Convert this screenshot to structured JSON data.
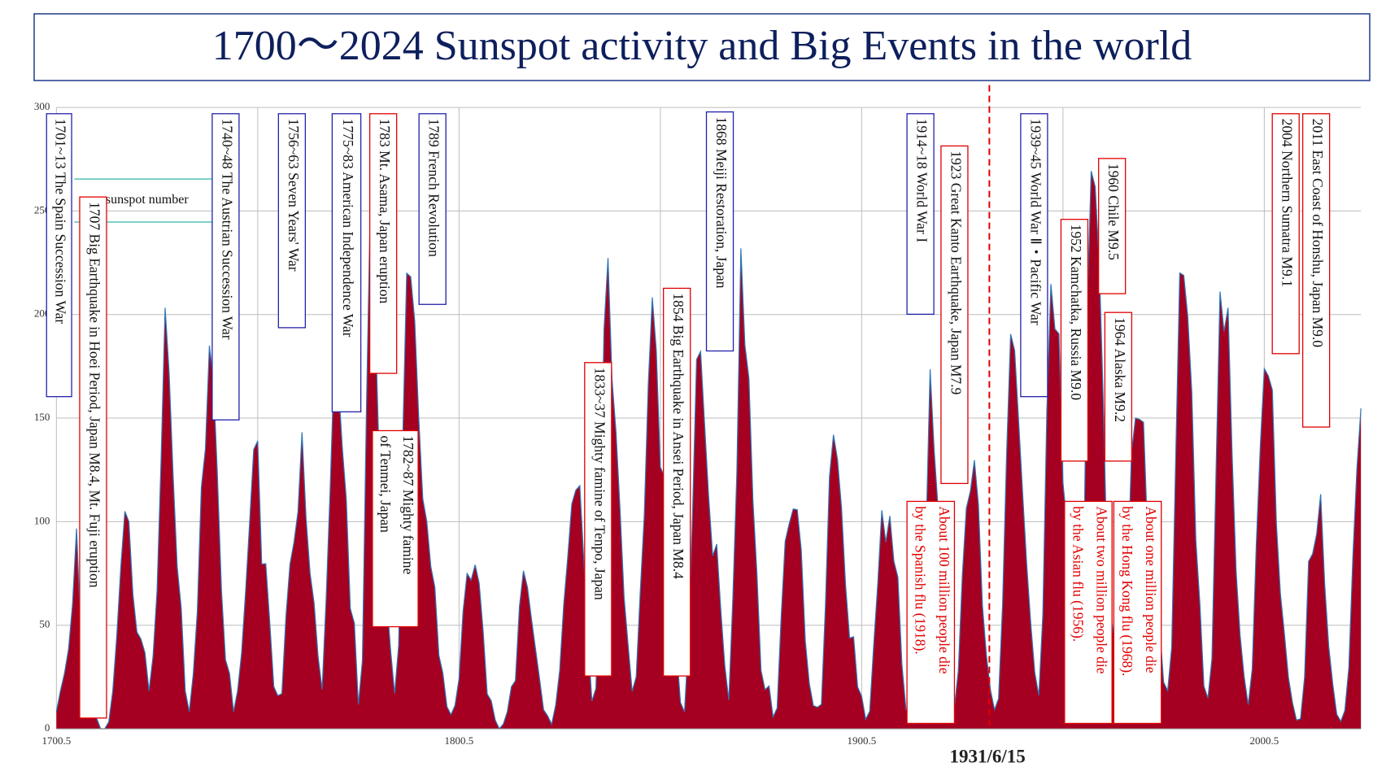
{
  "chart_data": {
    "type": "area",
    "title": "1700～2024 Sunspot activity and Big Events in the world",
    "x": [
      1700.5,
      1701.5,
      1702.5,
      1703.5,
      1704.5,
      1705.5,
      1706.5,
      1707.5,
      1708.5,
      1709.5,
      1710.5,
      1711.5,
      1712.5,
      1713.5,
      1714.5,
      1715.5,
      1716.5,
      1717.5,
      1718.5,
      1719.5,
      1720.5,
      1721.5,
      1722.5,
      1723.5,
      1724.5,
      1725.5,
      1726.5,
      1727.5,
      1728.5,
      1729.5,
      1730.5,
      1731.5,
      1732.5,
      1733.5,
      1734.5,
      1735.5,
      1736.5,
      1737.5,
      1738.5,
      1739.5,
      1740.5,
      1741.5,
      1742.5,
      1743.5,
      1744.5,
      1745.5,
      1746.5,
      1747.5,
      1748.5,
      1749.5,
      1750.5,
      1751.5,
      1752.5,
      1753.5,
      1754.5,
      1755.5,
      1756.5,
      1757.5,
      1758.5,
      1759.5,
      1760.5,
      1761.5,
      1762.5,
      1763.5,
      1764.5,
      1765.5,
      1766.5,
      1767.5,
      1768.5,
      1769.5,
      1770.5,
      1771.5,
      1772.5,
      1773.5,
      1774.5,
      1775.5,
      1776.5,
      1777.5,
      1778.5,
      1779.5,
      1780.5,
      1781.5,
      1782.5,
      1783.5,
      1784.5,
      1785.5,
      1786.5,
      1787.5,
      1788.5,
      1789.5,
      1790.5,
      1791.5,
      1792.5,
      1793.5,
      1794.5,
      1795.5,
      1796.5,
      1797.5,
      1798.5,
      1799.5,
      1800.5,
      1801.5,
      1802.5,
      1803.5,
      1804.5,
      1805.5,
      1806.5,
      1807.5,
      1808.5,
      1809.5,
      1810.5,
      1811.5,
      1812.5,
      1813.5,
      1814.5,
      1815.5,
      1816.5,
      1817.5,
      1818.5,
      1819.5,
      1820.5,
      1821.5,
      1822.5,
      1823.5,
      1824.5,
      1825.5,
      1826.5,
      1827.5,
      1828.5,
      1829.5,
      1830.5,
      1831.5,
      1832.5,
      1833.5,
      1834.5,
      1835.5,
      1836.5,
      1837.5,
      1838.5,
      1839.5,
      1840.5,
      1841.5,
      1842.5,
      1843.5,
      1844.5,
      1845.5,
      1846.5,
      1847.5,
      1848.5,
      1849.5,
      1850.5,
      1851.5,
      1852.5,
      1853.5,
      1854.5,
      1855.5,
      1856.5,
      1857.5,
      1858.5,
      1859.5,
      1860.5,
      1861.5,
      1862.5,
      1863.5,
      1864.5,
      1865.5,
      1866.5,
      1867.5,
      1868.5,
      1869.5,
      1870.5,
      1871.5,
      1872.5,
      1873.5,
      1874.5,
      1875.5,
      1876.5,
      1877.5,
      1878.5,
      1879.5,
      1880.5,
      1881.5,
      1882.5,
      1883.5,
      1884.5,
      1885.5,
      1886.5,
      1887.5,
      1888.5,
      1889.5,
      1890.5,
      1891.5,
      1892.5,
      1893.5,
      1894.5,
      1895.5,
      1896.5,
      1897.5,
      1898.5,
      1899.5,
      1900.5,
      1901.5,
      1902.5,
      1903.5,
      1904.5,
      1905.5,
      1906.5,
      1907.5,
      1908.5,
      1909.5,
      1910.5,
      1911.5,
      1912.5,
      1913.5,
      1914.5,
      1915.5,
      1916.5,
      1917.5,
      1918.5,
      1919.5,
      1920.5,
      1921.5,
      1922.5,
      1923.5,
      1924.5,
      1925.5,
      1926.5,
      1927.5,
      1928.5,
      1929.5,
      1930.5,
      1931.5,
      1932.5,
      1933.5,
      1934.5,
      1935.5,
      1936.5,
      1937.5,
      1938.5,
      1939.5,
      1940.5,
      1941.5,
      1942.5,
      1943.5,
      1944.5,
      1945.5,
      1946.5,
      1947.5,
      1948.5,
      1949.5,
      1950.5,
      1951.5,
      1952.5,
      1953.5,
      1954.5,
      1955.5,
      1956.5,
      1957.5,
      1958.5,
      1959.5,
      1960.5,
      1961.5,
      1962.5,
      1963.5,
      1964.5,
      1965.5,
      1966.5,
      1967.5,
      1968.5,
      1969.5,
      1970.5,
      1971.5,
      1972.5,
      1973.5,
      1974.5,
      1975.5,
      1976.5,
      1977.5,
      1978.5,
      1979.5,
      1980.5,
      1981.5,
      1982.5,
      1983.5,
      1984.5,
      1985.5,
      1986.5,
      1987.5,
      1988.5,
      1989.5,
      1990.5,
      1991.5,
      1992.5,
      1993.5,
      1994.5,
      1995.5,
      1996.5,
      1997.5,
      1998.5,
      1999.5,
      2000.5,
      2001.5,
      2002.5,
      2003.5,
      2004.5,
      2005.5,
      2006.5,
      2007.5,
      2008.5,
      2009.5,
      2010.5,
      2011.5,
      2012.5,
      2013.5,
      2014.5,
      2015.5,
      2016.5,
      2017.5,
      2018.5,
      2019.5,
      2020.5,
      2021.5,
      2022.5,
      2023.5,
      2024.5
    ],
    "series": [
      {
        "name": "sunspot number",
        "color": "#a50021",
        "line_color": "#2e75b6",
        "values": [
          8.3,
          18.3,
          26.7,
          38.3,
          60.0,
          96.7,
          48.3,
          33.3,
          16.7,
          13.3,
          5.0,
          0.0,
          0.0,
          3.3,
          18.3,
          45.0,
          78.3,
          105.0,
          100.0,
          65.0,
          46.7,
          43.3,
          36.7,
          18.3,
          35.0,
          66.7,
          130.0,
          203.3,
          171.7,
          121.7,
          78.3,
          58.3,
          18.3,
          8.3,
          26.7,
          56.7,
          116.7,
          135.0,
          185.0,
          168.3,
          121.7,
          66.7,
          33.3,
          26.7,
          8.3,
          18.3,
          36.7,
          66.7,
          100.0,
          134.8,
          139.0,
          79.5,
          79.7,
          51.2,
          20.3,
          16.0,
          17.0,
          54.0,
          79.3,
          90.0,
          104.8,
          143.2,
          102.0,
          75.2,
          60.7,
          34.8,
          19.0,
          63.0,
          116.3,
          176.8,
          168.0,
          136.0,
          110.8,
          58.0,
          51.0,
          11.7,
          33.0,
          154.2,
          257.3,
          209.8,
          141.3,
          113.5,
          64.2,
          38.0,
          17.0,
          40.2,
          138.2,
          220.0,
          218.2,
          196.8,
          149.8,
          111.0,
          100.0,
          78.2,
          68.3,
          35.5,
          26.7,
          10.7,
          6.8,
          11.3,
          24.2,
          56.7,
          75.0,
          71.8,
          79.2,
          70.3,
          46.8,
          16.8,
          13.5,
          4.2,
          0.0,
          2.3,
          8.3,
          20.3,
          23.2,
          59.0,
          76.3,
          68.3,
          52.9,
          38.5,
          24.2,
          9.2,
          6.3,
          2.2,
          11.4,
          28.2,
          59.9,
          83.0,
          108.5,
          115.2,
          117.4,
          80.8,
          44.3,
          13.4,
          19.5,
          85.8,
          192.7,
          227.3,
          168.7,
          143.0,
          105.5,
          63.3,
          40.3,
          18.1,
          25.1,
          65.8,
          102.7,
          166.3,
          208.3,
          182.5,
          126.3,
          122.0,
          102.7,
          74.1,
          39.0,
          12.7,
          8.2,
          43.4,
          104.4,
          178.3,
          182.2,
          146.6,
          112.1,
          83.5,
          89.2,
          57.8,
          30.7,
          13.9,
          62.8,
          123.6,
          232.0,
          185.3,
          169.2,
          110.1,
          74.5,
          28.3,
          18.9,
          20.7,
          5.7,
          10.0,
          53.7,
          90.5,
          99.0,
          106.1,
          105.8,
          86.3,
          42.4,
          21.8,
          11.2,
          10.4,
          11.8,
          59.5,
          121.7,
          142.0,
          130.0,
          106.6,
          69.4,
          43.8,
          44.4,
          20.2,
          15.7,
          4.6,
          8.5,
          40.8,
          70.1,
          105.5,
          90.1,
          102.8,
          80.9,
          73.2,
          30.9,
          9.5,
          6.0,
          2.4,
          16.1,
          79.0,
          95.0,
          173.6,
          134.6,
          105.7,
          62.7,
          43.5,
          23.7,
          9.7,
          27.9,
          74.0,
          106.5,
          114.7,
          129.7,
          108.2,
          59.4,
          35.1,
          18.6,
          9.2,
          14.6,
          60.2,
          132.8,
          190.6,
          182.6,
          148.0,
          113.0,
          79.2,
          50.8,
          27.1,
          16.1,
          55.3,
          154.3,
          214.7,
          193.0,
          190.7,
          118.9,
          98.3,
          45.0,
          20.1,
          6.6,
          54.2,
          200.7,
          269.3,
          261.7,
          225.1,
          159.0,
          76.4,
          53.4,
          39.9,
          15.0,
          22.0,
          66.8,
          132.9,
          150.0,
          149.4,
          148.0,
          94.4,
          97.6,
          54.1,
          49.2,
          22.5,
          18.4,
          39.3,
          131.0,
          220.1,
          218.9,
          198.9,
          162.4,
          91.0,
          60.5,
          20.6,
          14.8,
          33.9,
          123.0,
          211.1,
          191.8,
          203.3,
          133.0,
          76.1,
          44.9,
          25.1,
          11.6,
          28.9,
          88.3,
          136.3,
          173.9,
          170.4,
          163.6,
          99.3,
          65.3,
          45.8,
          24.7,
          12.6,
          4.2,
          4.8,
          24.9,
          80.8,
          84.5,
          94.0,
          113.3,
          69.8,
          39.8,
          21.7,
          7.0,
          3.6,
          8.8,
          29.6,
          83.2,
          125.5,
          154.7
        ]
      }
    ],
    "xlim": [
      1700.5,
      2024.5
    ],
    "xticks": [
      1700.5,
      1800.5,
      1900.5,
      2000.5
    ],
    "x_minor_grid": [
      1750.5,
      1850.5,
      1950.5
    ],
    "ylim": [
      0,
      300
    ],
    "yticks": [
      0,
      50,
      100,
      150,
      200,
      250,
      300
    ],
    "grid": true,
    "marker": {
      "label": "1931/6/15",
      "color": "#e00000"
    },
    "annotations": [
      {
        "lines": [
          "1701~13 The Spain Succession War"
        ],
        "color": "#2222aa"
      },
      {
        "lines": [
          "1707 Big Earthquake in Hoei Period, Japan M8.4, Mt. Fuji eruption"
        ],
        "color": "#e00000"
      },
      {
        "lines": [
          "1740~48 The Austrian Succession War"
        ],
        "color": "#2222aa"
      },
      {
        "lines": [
          "1756~63 Seven Years' War"
        ],
        "color": "#2222aa"
      },
      {
        "lines": [
          "1775~83 American Independence War"
        ],
        "color": "#2222aa"
      },
      {
        "lines": [
          "1783 Mt. Asama, Japan eruption"
        ],
        "color": "#e00000"
      },
      {
        "lines": [
          "1789 French Revolution"
        ],
        "color": "#2222aa"
      },
      {
        "lines": [
          "1782~87 Mighty famine",
          "of Tenmei, Japan"
        ],
        "color": "#e00000"
      },
      {
        "lines": [
          "1833~37 Mighty famine of Tenpo, Japan"
        ],
        "color": "#e00000"
      },
      {
        "lines": [
          "1854 Big Earthquake in Ansei Period, Japan M8.4"
        ],
        "color": "#e00000"
      },
      {
        "lines": [
          "1868 Meiji Restoration, Japan"
        ],
        "color": "#2222aa"
      },
      {
        "lines": [
          "1914~18 World War I"
        ],
        "color": "#2222aa"
      },
      {
        "lines": [
          "1923 Great Kanto Earthquake, Japan M7.9"
        ],
        "color": "#e00000"
      },
      {
        "lines": [
          "About 100 million people die",
          "by the Spanish flu (1918)."
        ],
        "color": "#e00000",
        "text_color": "#e00000"
      },
      {
        "lines": [
          "1939~45 World War Ⅱ・Pacific War"
        ],
        "color": "#2222aa"
      },
      {
        "lines": [
          "1952 Kamchatka, Russia M9.0"
        ],
        "color": "#e00000"
      },
      {
        "lines": [
          "1960 Chile M9.5"
        ],
        "color": "#e00000"
      },
      {
        "lines": [
          "1964 Alaska M9.2"
        ],
        "color": "#e00000"
      },
      {
        "lines": [
          "About two million people die",
          "by the Asian flu (1956)."
        ],
        "color": "#e00000",
        "text_color": "#e00000"
      },
      {
        "lines": [
          "About one million people die",
          "by the Hong Kong flu (1968)."
        ],
        "color": "#e00000",
        "text_color": "#e00000"
      },
      {
        "lines": [
          "2004 Northern Sumatra M9.1"
        ],
        "color": "#e00000"
      },
      {
        "lines": [
          "2011 East Coast of Honshu, Japan M9.0"
        ],
        "color": "#e00000"
      }
    ]
  }
}
